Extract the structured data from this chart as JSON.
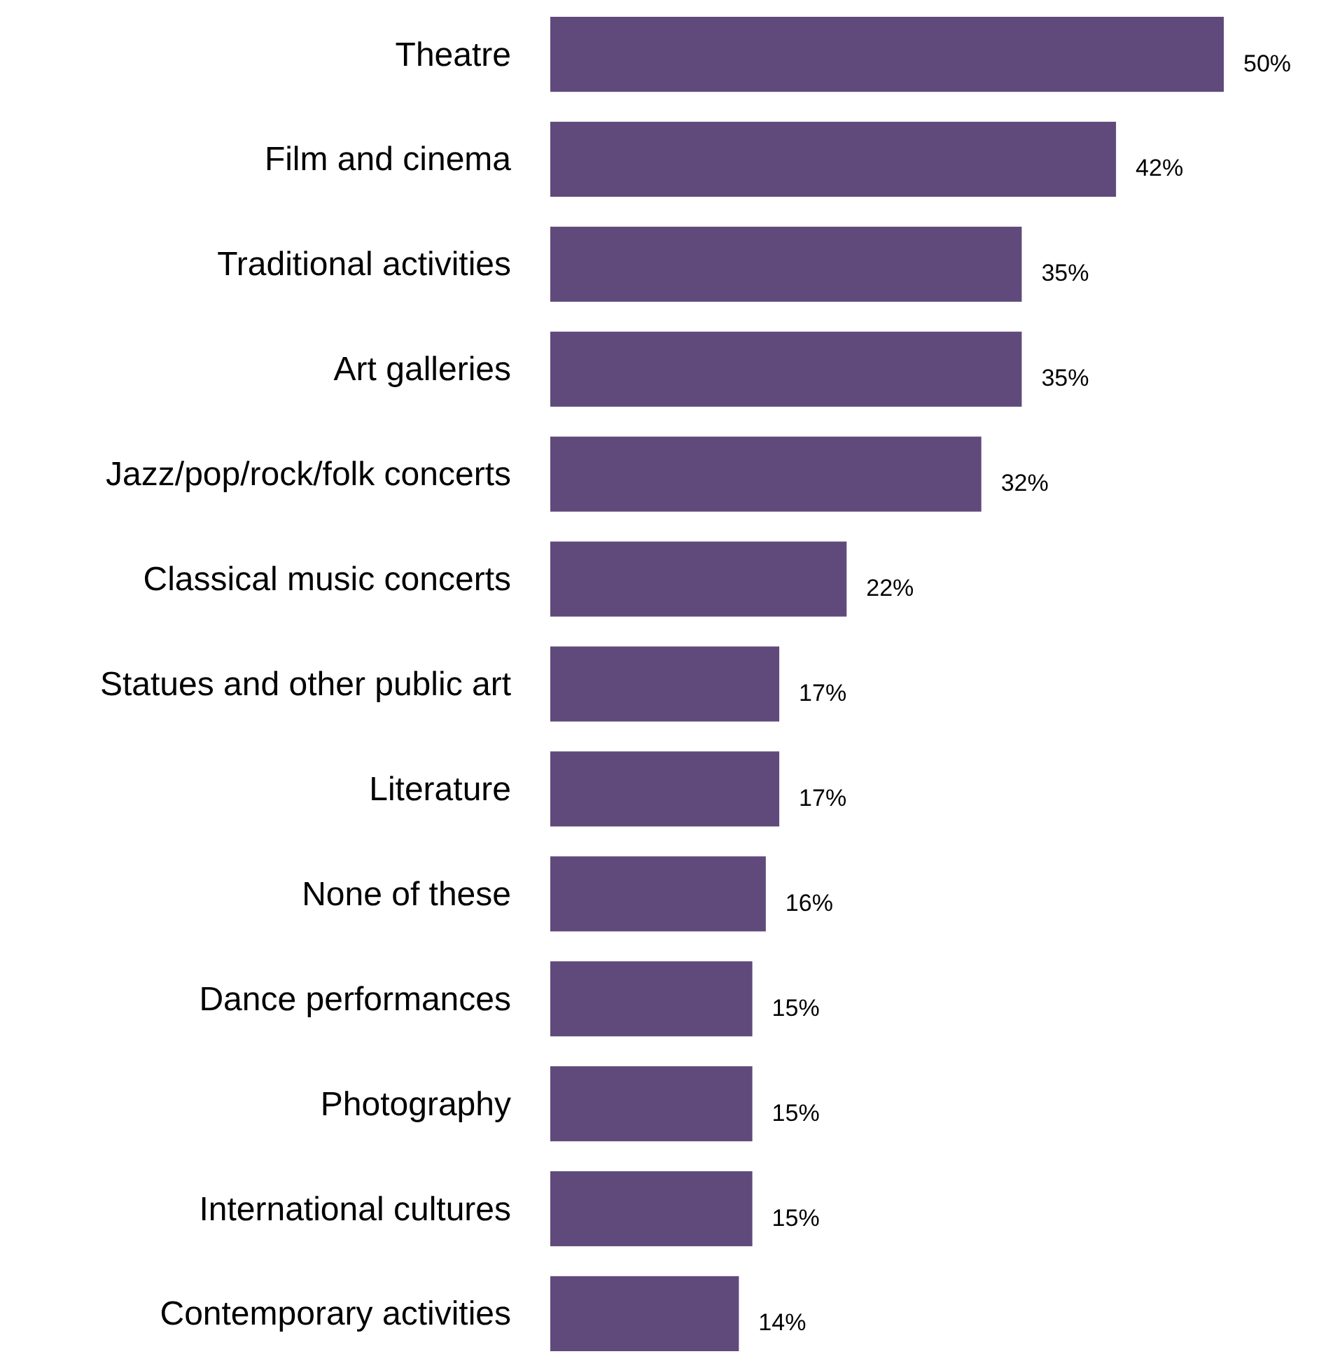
{
  "chart_data": {
    "type": "bar",
    "orientation": "horizontal",
    "categories": [
      "Theatre",
      "Film and cinema",
      "Traditional activities",
      "Art galleries",
      "Jazz/pop/rock/folk concerts",
      "Classical music concerts",
      "Statues and other public art",
      "Literature",
      "None of these",
      "Dance performances",
      "Photography",
      "International cultures",
      "Contemporary activities"
    ],
    "values": [
      50,
      42,
      35,
      35,
      32,
      22,
      17,
      17,
      16,
      15,
      15,
      15,
      14
    ],
    "value_labels": [
      "50%",
      "42%",
      "35%",
      "35%",
      "32%",
      "22%",
      "17%",
      "17%",
      "16%",
      "15%",
      "15%",
      "15%",
      "14%"
    ],
    "color": "#604a7b"
  }
}
